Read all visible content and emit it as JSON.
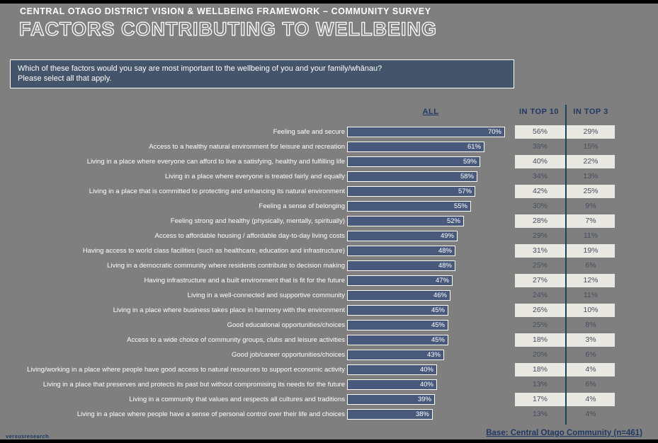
{
  "header": {
    "eyebrow": "CENTRAL OTAGO DISTRICT VISION & WELLBEING FRAMEWORK – COMMUNITY SURVEY",
    "title": "FACTORS CONTRIBUTING TO WELLBEING"
  },
  "question": {
    "line1": "Which of these factors would you say are most important to the wellbeing of you and your family/whānau?",
    "line2": "Please select all that apply."
  },
  "columns": {
    "all": "ALL",
    "top10": "IN TOP 10",
    "top3": "IN TOP 3"
  },
  "footer": {
    "base": "Base: Central Otago Community (n=461)",
    "logo": "versusresearch"
  },
  "colors": {
    "background": "#7F7F7F",
    "bar": "#48597B",
    "navy": "#1F3864",
    "cell_background": "#E9E8E3",
    "divider": "#1F4257",
    "question_box": "#44546A"
  },
  "chart_data": {
    "type": "bar",
    "orientation": "horizontal",
    "title": "FACTORS CONTRIBUTING TO WELLBEING",
    "value_suffix": "%",
    "xlim": [
      0,
      100
    ],
    "categories": [
      "Feeling safe and secure",
      "Access to a healthy natural environment for leisure and recreation",
      "Living in a place where everyone can afford to live a satisfying, healthy and fulfilling life",
      "Living in a place where everyone is treated fairly and equally",
      "Living in a place that is committed to protecting and enhancing its natural environment",
      "Feeling a sense of belonging",
      "Feeling strong and healthy (physically, mentally, spiritually)",
      "Access to affordable housing / affordable day-to-day living costs",
      "Having access to world class facilities (such as healthcare, education and infrastructure)",
      "Living in a democratic community where residents contribute to decision making",
      "Having infrastructure and a built environment that is fit for the future",
      "Living in a well-connected and supportive community",
      "Living in a place where business takes place in harmony with the environment",
      "Good educational opportunities/choices",
      "Access to a wide choice of community groups, clubs and leisure activities",
      "Good job/career opportunities/choices",
      "Living/working in a place where people have good access to natural resources to support economic activity",
      "Living in a place that preserves and protects its past but without compromising its needs for the future",
      "Living in a community that values and respects all cultures and traditions",
      "Living in a place where people have a sense of personal control over their life and choices"
    ],
    "series": [
      {
        "name": "ALL",
        "values": [
          70,
          61,
          59,
          58,
          57,
          55,
          52,
          49,
          48,
          48,
          47,
          46,
          45,
          45,
          45,
          43,
          40,
          40,
          39,
          38
        ]
      },
      {
        "name": "IN TOP 10",
        "values": [
          56,
          38,
          40,
          34,
          42,
          30,
          28,
          29,
          31,
          25,
          27,
          24,
          26,
          25,
          18,
          20,
          18,
          13,
          17,
          13
        ]
      },
      {
        "name": "IN TOP 3",
        "values": [
          29,
          15,
          22,
          13,
          25,
          9,
          7,
          11,
          19,
          6,
          12,
          11,
          10,
          8,
          3,
          6,
          4,
          6,
          4,
          4
        ]
      }
    ]
  }
}
